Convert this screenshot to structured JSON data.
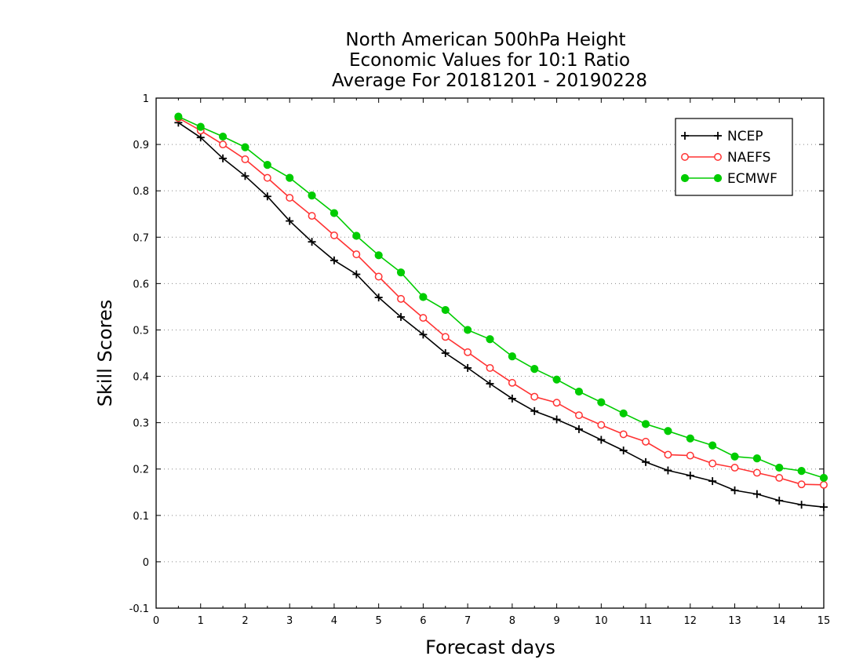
{
  "chart_data": {
    "type": "line",
    "title": [
      "North American 500hPa Height",
      "Economic Values for 10:1 Ratio",
      "Average For 20181201 - 20190228"
    ],
    "xlabel": "Forecast days",
    "ylabel": "Skill Scores",
    "xlim": [
      0,
      15
    ],
    "ylim": [
      -0.1,
      1
    ],
    "xticks": [
      "0",
      "1",
      "2",
      "3",
      "4",
      "5",
      "6",
      "7",
      "8",
      "9",
      "10",
      "11",
      "12",
      "13",
      "14",
      "15"
    ],
    "yticks": [
      "1",
      "0.9",
      "0.8",
      "0.7",
      "0.6",
      "0.5",
      "0.4",
      "0.3",
      "0.2",
      "0.1",
      "0",
      "-0.1"
    ],
    "grid": true,
    "legend_position": "top-right",
    "x": [
      0.5,
      1,
      1.5,
      2,
      2.5,
      3,
      3.5,
      4,
      4.5,
      5,
      5.5,
      6,
      6.5,
      7,
      7.5,
      8,
      8.5,
      9,
      9.5,
      10,
      10.5,
      11,
      11.5,
      12,
      12.5,
      13,
      13.5,
      14,
      14.5,
      15
    ],
    "series": [
      {
        "name": "NCEP",
        "color": "#000000",
        "marker": "plus",
        "values": [
          0.947,
          0.915,
          0.87,
          0.832,
          0.788,
          0.735,
          0.69,
          0.65,
          0.62,
          0.57,
          0.528,
          0.49,
          0.45,
          0.418,
          0.384,
          0.352,
          0.325,
          0.307,
          0.286,
          0.263,
          0.24,
          0.215,
          0.197,
          0.186,
          0.174,
          0.154,
          0.146,
          0.132,
          0.123,
          0.118
        ]
      },
      {
        "name": "NAEFS",
        "color": "#ff3333",
        "marker": "open-circle",
        "values": [
          0.957,
          0.93,
          0.9,
          0.868,
          0.828,
          0.785,
          0.746,
          0.704,
          0.663,
          0.615,
          0.567,
          0.526,
          0.485,
          0.452,
          0.418,
          0.386,
          0.356,
          0.343,
          0.316,
          0.295,
          0.275,
          0.259,
          0.231,
          0.229,
          0.212,
          0.203,
          0.192,
          0.181,
          0.167,
          0.166
        ]
      },
      {
        "name": "ECMWF",
        "color": "#00cc00",
        "marker": "filled-circle",
        "values": [
          0.96,
          0.938,
          0.917,
          0.894,
          0.856,
          0.828,
          0.79,
          0.752,
          0.703,
          0.661,
          0.624,
          0.571,
          0.543,
          0.5,
          0.48,
          0.443,
          0.416,
          0.393,
          0.367,
          0.344,
          0.32,
          0.297,
          0.282,
          0.266,
          0.251,
          0.227,
          0.223,
          0.203,
          0.196,
          0.181
        ]
      }
    ]
  }
}
